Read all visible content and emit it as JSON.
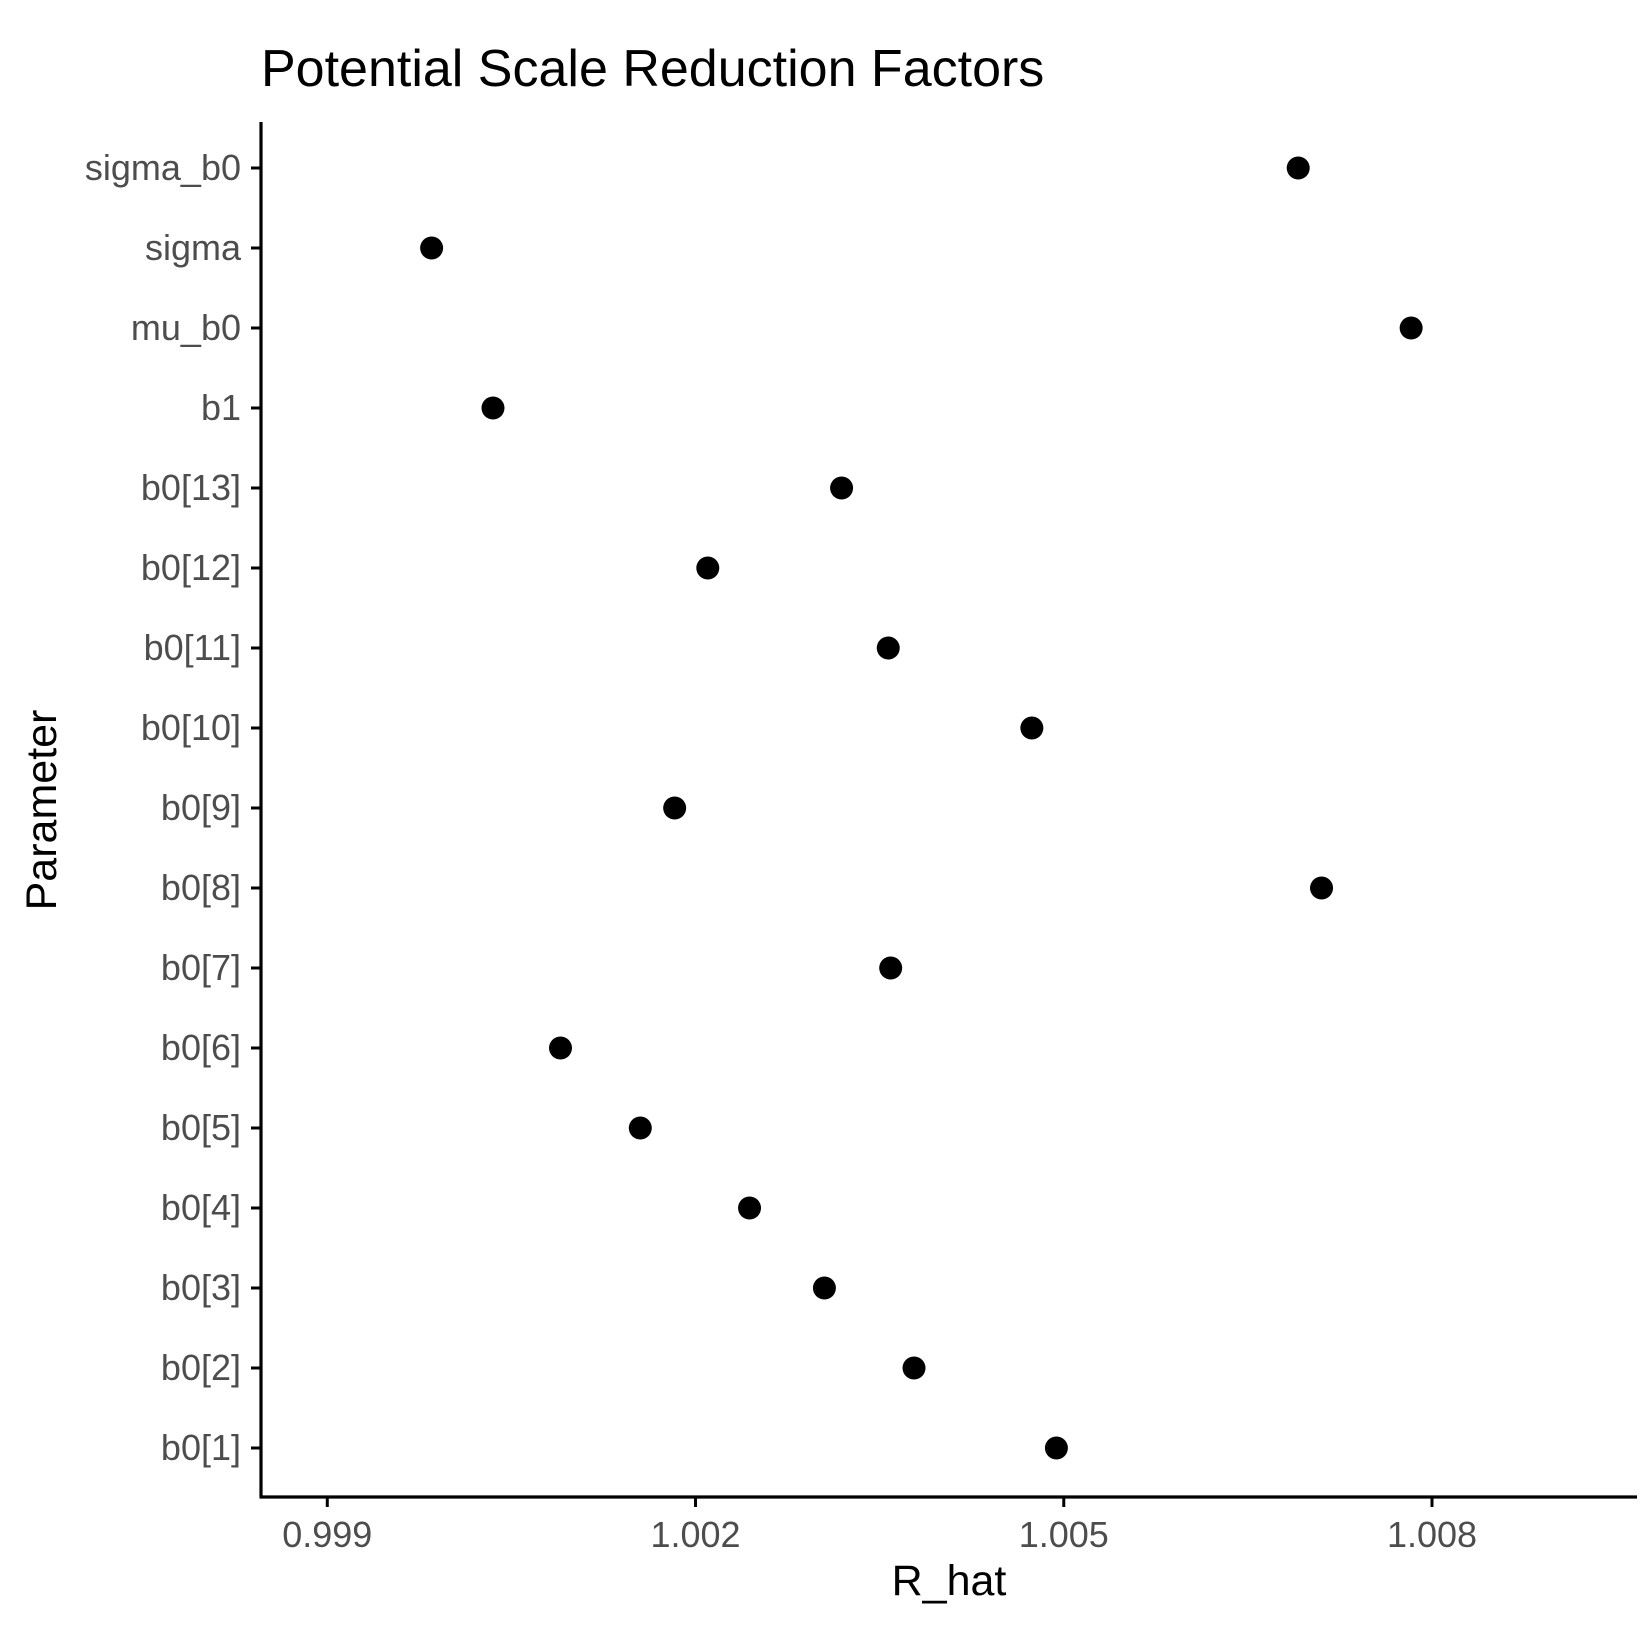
{
  "chart_data": {
    "type": "scatter",
    "title": "Potential Scale Reduction Factors",
    "xlabel": "R_hat",
    "ylabel": "Parameter",
    "xlim": [
      0.99846,
      1.00967
    ],
    "x_ticks": [
      0.999,
      1.002,
      1.005,
      1.008
    ],
    "x_tick_labels": [
      "0.999",
      "1.002",
      "1.005",
      "1.008"
    ],
    "grid": false,
    "legend": "none",
    "categories": [
      "b0[1]",
      "b0[2]",
      "b0[3]",
      "b0[4]",
      "b0[5]",
      "b0[6]",
      "b0[7]",
      "b0[8]",
      "b0[9]",
      "b0[10]",
      "b0[11]",
      "b0[12]",
      "b0[13]",
      "b1",
      "mu_b0",
      "sigma",
      "sigma_b0"
    ],
    "values": [
      1.00494,
      1.00378,
      1.00305,
      1.00244,
      1.00155,
      1.0009,
      1.00359,
      1.0071,
      1.00183,
      1.00474,
      1.00357,
      1.0021,
      1.00319,
      1.00035,
      1.00783,
      0.99985,
      1.00691
    ],
    "point_color": "#000000"
  }
}
